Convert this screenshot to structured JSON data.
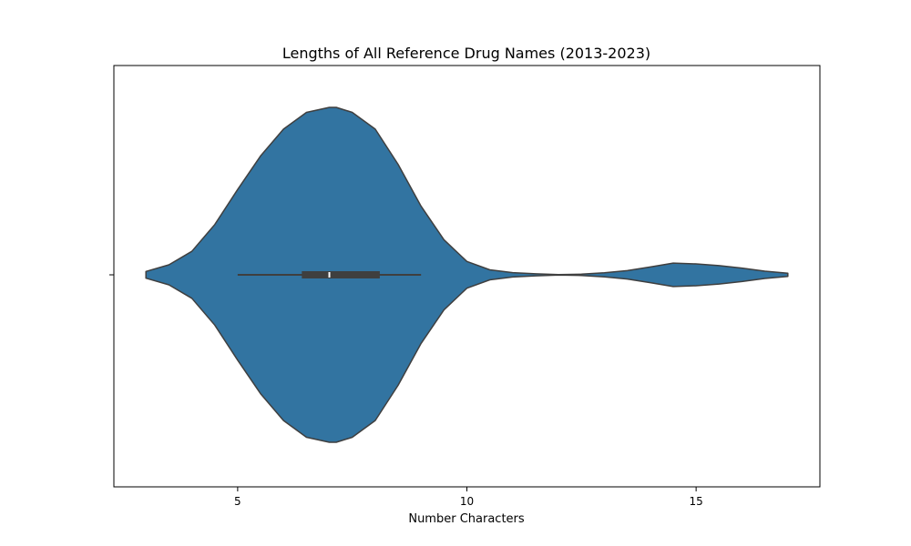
{
  "chart_data": {
    "type": "violin",
    "title": "Lengths of All Reference Drug Names (2013-2023)",
    "xlabel": "Number Characters",
    "ylabel": "",
    "xlim": [
      2.3,
      17.7
    ],
    "xticks": [
      5,
      10,
      15
    ],
    "orientation": "horizontal",
    "grid": false,
    "legend": false,
    "fill_color": "#3274a1",
    "edge_color": "#3f3f3f",
    "summary": {
      "whisker_low": 5,
      "q1": 6.4,
      "median": 7,
      "q3": 8.1,
      "whisker_high": 9
    },
    "density": {
      "x": [
        3,
        3.5,
        4,
        4.5,
        5,
        5.5,
        6,
        6.5,
        7,
        7.15,
        7.5,
        8,
        8.5,
        9,
        9.5,
        10,
        10.5,
        11,
        11.5,
        12,
        12.5,
        13,
        13.5,
        14,
        14.5,
        15,
        15.5,
        16,
        16.5,
        17
      ],
      "y": [
        0.02,
        0.06,
        0.14,
        0.3,
        0.51,
        0.71,
        0.87,
        0.97,
        1.0,
        1.0,
        0.97,
        0.87,
        0.66,
        0.41,
        0.21,
        0.08,
        0.03,
        0.013,
        0.006,
        0.001,
        0.004,
        0.012,
        0.025,
        0.047,
        0.07,
        0.065,
        0.055,
        0.04,
        0.022,
        0.01
      ]
    }
  }
}
